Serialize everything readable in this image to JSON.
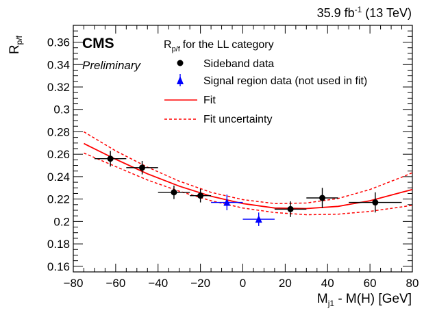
{
  "header": {
    "lumi_label": "35.9 fb",
    "lumi_sup": "-1",
    "energy_label": "(13 TeV)",
    "experiment": "CMS",
    "status": "Preliminary"
  },
  "legend": {
    "title_main": "R",
    "title_sub": "p/f",
    "title_rest": "for the LL category",
    "entries": [
      "Sideband data",
      "Signal region data (not used in fit)",
      "Fit",
      "Fit uncertainty"
    ]
  },
  "axes": {
    "ylabel_main": "R",
    "ylabel_sub": "p/f",
    "xlabel_pre": "M",
    "xlabel_sub": "j1",
    "xlabel_post": " - M(H) [GeV]"
  },
  "colors": {
    "sideband": "#000000",
    "signal": "#0000ff",
    "fit": "#ff0000"
  },
  "chart_data": {
    "type": "scatter",
    "xlim": [
      -80,
      80
    ],
    "ylim": [
      0.155,
      0.375
    ],
    "xticks": [
      -80,
      -60,
      -40,
      -20,
      0,
      20,
      40,
      60,
      80
    ],
    "yticks": [
      0.16,
      0.18,
      0.2,
      0.22,
      0.24,
      0.26,
      0.28,
      0.3,
      0.32,
      0.34,
      0.36
    ],
    "ytick_labels": [
      "0.16",
      "0.18",
      "0.2",
      "0.22",
      "0.24",
      "0.26",
      "0.28",
      "0.3",
      "0.32",
      "0.34",
      "0.36"
    ],
    "series": [
      {
        "name": "Sideband data",
        "marker": "circle",
        "points": [
          {
            "x": -62.5,
            "y": 0.256,
            "xerr": 7.5,
            "yerr": 0.007
          },
          {
            "x": -47.5,
            "y": 0.248,
            "xerr": 7.5,
            "yerr": 0.006
          },
          {
            "x": -32.5,
            "y": 0.226,
            "xerr": 7.5,
            "yerr": 0.006
          },
          {
            "x": -20.0,
            "y": 0.223,
            "xerr": 5.0,
            "yerr": 0.006
          },
          {
            "x": 22.5,
            "y": 0.211,
            "xerr": 7.5,
            "yerr": 0.007
          },
          {
            "x": 37.5,
            "y": 0.221,
            "xerr": 7.5,
            "yerr": 0.009
          },
          {
            "x": 62.5,
            "y": 0.217,
            "xerr": 12.5,
            "yerr": 0.009
          }
        ]
      },
      {
        "name": "Signal region data (not used in fit)",
        "marker": "triangle",
        "points": [
          {
            "x": -7.5,
            "y": 0.217,
            "xerr": 7.5,
            "yerr": 0.007
          },
          {
            "x": 7.5,
            "y": 0.202,
            "xerr": 7.5,
            "yerr": 0.006
          }
        ]
      },
      {
        "name": "Fit",
        "style": "solid",
        "x": [
          -75,
          -60,
          -45,
          -30,
          -15,
          0,
          15,
          30,
          45,
          60,
          75,
          80
        ],
        "y": [
          0.2695,
          0.2555,
          0.2425,
          0.2315,
          0.2225,
          0.216,
          0.212,
          0.2115,
          0.2135,
          0.2185,
          0.226,
          0.2285
        ]
      },
      {
        "name": "Fit uncertainty (upper)",
        "style": "dashed",
        "x": [
          -75,
          -60,
          -45,
          -30,
          -15,
          0,
          15,
          30,
          45,
          60,
          75,
          80
        ],
        "y": [
          0.28,
          0.263,
          0.2485,
          0.236,
          0.226,
          0.2195,
          0.216,
          0.2165,
          0.2205,
          0.2285,
          0.2395,
          0.2435
        ]
      },
      {
        "name": "Fit uncertainty (lower)",
        "style": "dashed",
        "x": [
          -75,
          -60,
          -45,
          -30,
          -15,
          0,
          15,
          30,
          45,
          60,
          75,
          80
        ],
        "y": [
          0.261,
          0.249,
          0.237,
          0.227,
          0.2185,
          0.212,
          0.208,
          0.206,
          0.2065,
          0.209,
          0.213,
          0.2145
        ]
      }
    ]
  }
}
